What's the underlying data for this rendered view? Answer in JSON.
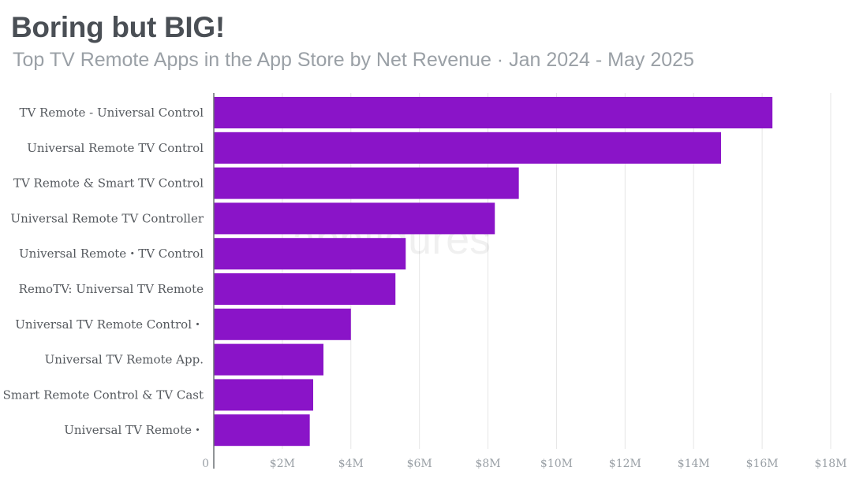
{
  "header": {
    "title": "Boring but BIG!",
    "subtitle": "Top TV Remote Apps in the App Store by Net Revenue · Jan 2024 - May 2025"
  },
  "watermark": "appfigures",
  "colors": {
    "bar": "#8a14c8",
    "grid": "#e6e6e6",
    "axis": "#9aa0a6"
  },
  "chart_data": {
    "type": "bar",
    "orientation": "horizontal",
    "title": "Boring but BIG!",
    "subtitle": "Top TV Remote Apps in the App Store by Net Revenue · Jan 2024 - May 2025",
    "xlabel": "",
    "ylabel": "",
    "categories": [
      "TV Remote - Universal Control",
      "Universal Remote TV Control",
      "TV Remote & Smart TV Control",
      "Universal Remote TV Controller",
      "Universal Remote・TV Control",
      "RemoTV: Universal TV Remote",
      "Universal TV Remote Control・",
      "Universal TV Remote App.",
      "Smart Remote Control & TV Cast",
      "Universal TV Remote・"
    ],
    "values": [
      16.3,
      14.8,
      8.9,
      8.2,
      5.6,
      5.3,
      4.0,
      3.2,
      2.9,
      2.8
    ],
    "unit": "M",
    "xlim": [
      0,
      18
    ],
    "ticks": [
      0,
      2,
      4,
      6,
      8,
      10,
      12,
      14,
      16,
      18
    ],
    "tick_labels": [
      "0",
      "$2M",
      "$4M",
      "$6M",
      "$8M",
      "$10M",
      "$12M",
      "$14M",
      "$16M",
      "$18M"
    ],
    "grid": true,
    "legend": "none"
  }
}
